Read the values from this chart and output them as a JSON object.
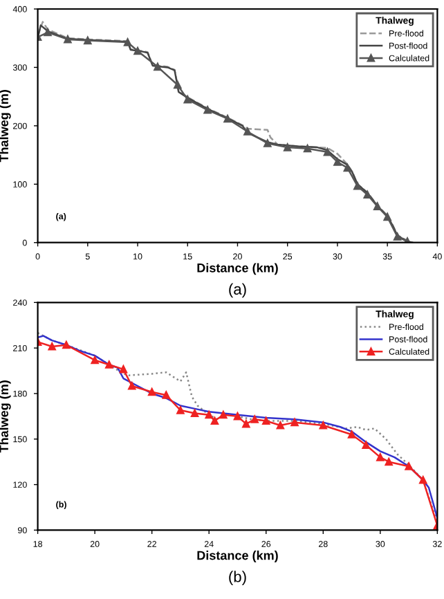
{
  "chart_data": [
    {
      "type": "line",
      "xlabel": "Distance (km)",
      "ylabel": "Thalweg (m)",
      "legend_title": "Thalweg",
      "legend": "top right",
      "grid": false,
      "xlim": [
        0,
        40
      ],
      "xticks": [
        0,
        5,
        10,
        15,
        20,
        25,
        30,
        35,
        40
      ],
      "ylim": [
        0,
        400
      ],
      "yticks": [
        0,
        100,
        200,
        300,
        400
      ],
      "annotations": [
        "(a)",
        "(a)"
      ],
      "series": [
        {
          "name": "Pre-flood",
          "color": "#999999",
          "line_style": "dashed",
          "marker": "none",
          "x": [
            0,
            0.5,
            1,
            3,
            5,
            9,
            9.3,
            10.5,
            11,
            11.5,
            13,
            13.7,
            14.1,
            15,
            17,
            19,
            20.5,
            21,
            23,
            23.3,
            24,
            26,
            28,
            29,
            30,
            31,
            31.5,
            32,
            33,
            34,
            35,
            35.5,
            36,
            37,
            37.5
          ],
          "values": [
            355,
            378,
            365,
            350,
            348,
            345,
            331,
            328,
            326,
            304,
            301,
            296,
            260,
            249,
            230,
            214,
            201,
            195,
            193,
            180,
            168,
            165,
            163,
            162,
            152,
            134,
            121,
            100,
            86,
            64,
            46,
            31,
            13,
            3,
            0
          ]
        },
        {
          "name": "Post-flood",
          "color": "#444444",
          "line_style": "solid",
          "marker": "none",
          "x": [
            0,
            0.3,
            1,
            3,
            5,
            9,
            9.3,
            10.5,
            11,
            11.5,
            13,
            13.7,
            14.1,
            15,
            17,
            19,
            20.5,
            21,
            22,
            23,
            24,
            26,
            28,
            29,
            30,
            31,
            31.5,
            32,
            33,
            34,
            35,
            35.5,
            36,
            37,
            37.5
          ],
          "values": [
            350,
            372,
            362,
            349,
            347,
            344,
            330,
            327,
            325,
            303,
            300,
            295,
            258,
            248,
            229,
            213,
            200,
            188,
            180,
            172,
            168,
            165,
            163,
            158,
            143,
            133,
            120,
            100,
            85,
            63,
            45,
            30,
            12,
            2,
            0
          ]
        },
        {
          "name": "Calculated",
          "color": "#555555",
          "line_style": "solid",
          "marker": "triangle",
          "x": [
            0,
            1,
            3,
            5,
            9,
            10,
            12,
            14,
            15,
            17,
            19,
            21,
            23,
            25,
            27,
            29,
            30,
            31,
            32,
            33,
            34,
            35,
            36,
            37
          ],
          "values": [
            352,
            360,
            348,
            346,
            343,
            328,
            301,
            270,
            245,
            227,
            212,
            190,
            170,
            163,
            161,
            155,
            138,
            128,
            97,
            82,
            62,
            44,
            10,
            2
          ]
        }
      ]
    },
    {
      "type": "line",
      "xlabel": "Distance (km)",
      "ylabel": "Thalweg (m)",
      "legend_title": "Thalweg",
      "legend": "top right",
      "grid": false,
      "xlim": [
        18,
        32
      ],
      "xticks": [
        18,
        20,
        22,
        24,
        26,
        28,
        30,
        32
      ],
      "ylim": [
        90,
        240
      ],
      "yticks": [
        90,
        120,
        150,
        180,
        210,
        240
      ],
      "annotations": [
        "(b)",
        "(b)"
      ],
      "series": [
        {
          "name": "Pre-flood",
          "color": "#888888",
          "line_style": "dotted",
          "marker": "none",
          "x": [
            18,
            18.5,
            19,
            20,
            20.5,
            21,
            21.2,
            22,
            22.5,
            23,
            23.2,
            23.4,
            23.6,
            24,
            24.3,
            24.6,
            25,
            25.5,
            26,
            27,
            28,
            28.8,
            29.2,
            29.5,
            29.8,
            30.2,
            30.6,
            31,
            31.5,
            32
          ],
          "values": [
            220,
            215,
            212,
            205,
            199,
            193,
            192,
            193,
            194,
            188,
            194,
            178,
            172,
            166,
            163,
            167,
            165,
            163,
            162,
            162,
            160,
            157,
            158,
            156,
            157,
            150,
            140,
            133,
            123,
            95
          ]
        },
        {
          "name": "Post-flood",
          "color": "#3333cc",
          "line_style": "solid",
          "marker": "none",
          "x": [
            18,
            18.2,
            18.5,
            19,
            19.5,
            20,
            20.5,
            20.8,
            21,
            21.5,
            22,
            22.5,
            23,
            23.5,
            24,
            25,
            26,
            27,
            28,
            28.6,
            29,
            29.5,
            30,
            30.5,
            31,
            31.5,
            31.7,
            32
          ],
          "values": [
            217,
            218,
            215,
            212,
            208,
            205,
            199,
            197,
            190,
            185,
            180,
            177,
            172,
            170,
            168,
            166,
            164,
            163,
            161,
            158,
            155,
            148,
            142,
            138,
            132,
            123,
            118,
            98
          ]
        },
        {
          "name": "Calculated",
          "color": "#ee2222",
          "line_style": "solid",
          "marker": "triangle",
          "x": [
            18,
            18.5,
            19,
            20,
            20.5,
            21,
            21.3,
            22,
            22.5,
            23,
            23.5,
            24,
            24.2,
            24.5,
            25,
            25.3,
            25.6,
            26,
            26.5,
            27,
            28,
            29,
            29.5,
            30,
            30.3,
            31,
            31.5,
            32
          ],
          "values": [
            214,
            211,
            212,
            202,
            199,
            196,
            185,
            181,
            179,
            169,
            167,
            166,
            162,
            166,
            165,
            160,
            163,
            162,
            159,
            161,
            159,
            153,
            146,
            138,
            135,
            132,
            123,
            93
          ]
        }
      ]
    }
  ]
}
